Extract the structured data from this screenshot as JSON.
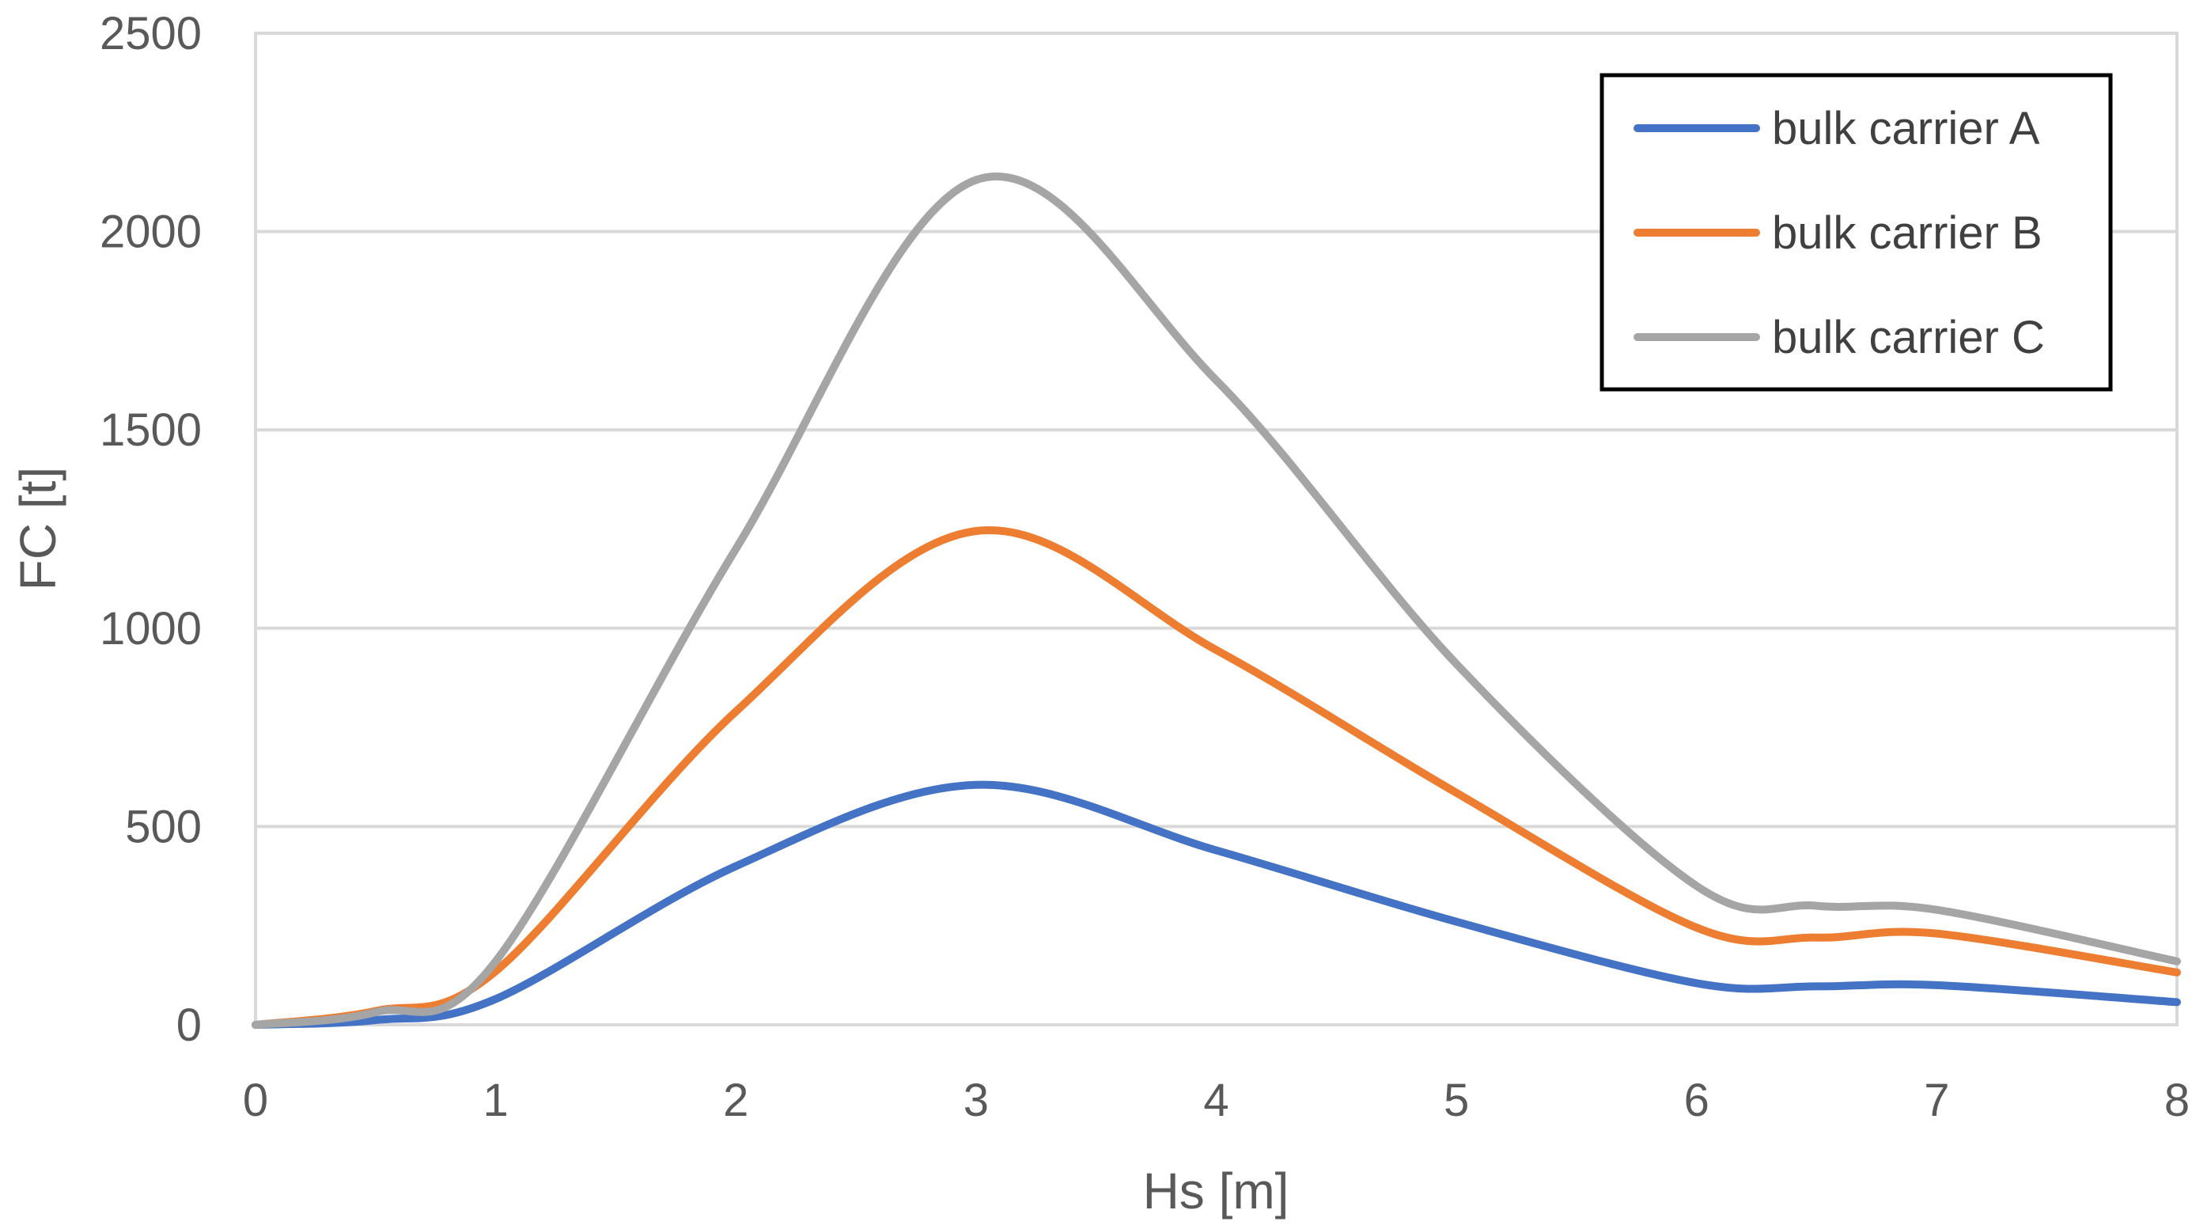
{
  "chart_data": {
    "type": "line",
    "title": "",
    "xlabel": "Hs [m]",
    "ylabel": "FC [t]",
    "xlim": [
      0,
      8
    ],
    "ylim": [
      0,
      2500
    ],
    "xticks": [
      0,
      1,
      2,
      3,
      4,
      5,
      6,
      7,
      8
    ],
    "yticks": [
      0,
      500,
      1000,
      1500,
      2000,
      2500
    ],
    "grid": "horizontal",
    "legend_position": "top-right",
    "x": [
      0,
      0.5,
      1,
      2,
      3,
      4,
      5,
      6,
      6.5,
      7,
      8
    ],
    "series": [
      {
        "name": "bulk carrier A",
        "color": "#4472C4",
        "values": [
          0,
          12,
          65,
          400,
          605,
          440,
          260,
          105,
          97,
          100,
          57
        ]
      },
      {
        "name": "bulk carrier B",
        "color": "#ED7D31",
        "values": [
          0,
          35,
          135,
          790,
          1245,
          945,
          585,
          245,
          220,
          230,
          132
        ]
      },
      {
        "name": "bulk carrier C",
        "color": "#A5A5A5",
        "values": [
          0,
          32,
          160,
          1200,
          2130,
          1625,
          910,
          350,
          300,
          290,
          160
        ]
      }
    ]
  }
}
